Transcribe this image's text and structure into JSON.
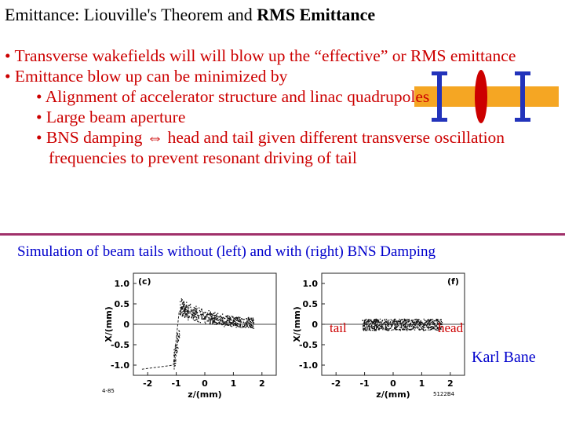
{
  "title": {
    "plain": "Emittance: Liouville's Theorem and ",
    "bold": "RMS Emittance"
  },
  "bullets": [
    "• Transverse wakefields will will blow up the “effective” or RMS emittance",
    "• Emittance blow up can be minimized by"
  ],
  "sub_bullets": [
    "• Alignment of accelerator structure and linac quadrupoles",
    "• Large beam aperture",
    "• BNS damping ⇔ head and tail given different transverse oscillation frequencies to prevent resonant driving of tail"
  ],
  "caption": "Simulation of beam tails without (left) and with (right) BNS Damping",
  "credit": "Karl Bane",
  "plot_labels": {
    "tail": "tail",
    "head": "head"
  },
  "colors": {
    "bullet_text": "#cc0000",
    "caption": "#0000cc",
    "rule": "#a0306a",
    "beam": "#f5a623",
    "magnet": "#2233bb",
    "bunch": "#cc0000"
  },
  "chart_data": [
    {
      "type": "scatter",
      "panel": "(c)",
      "xlabel": "z/(mm)",
      "ylabel": "X/(mm)",
      "xlim": [
        -2.5,
        2.5
      ],
      "ylim": [
        -1.25,
        1.25
      ],
      "xticks": [
        "-2",
        "-1",
        "0",
        "1",
        "2"
      ],
      "yticks": [
        "1.0",
        "0.5",
        "0",
        "-0.5",
        "-1.0"
      ],
      "footnote_left": "4-85"
    },
    {
      "type": "scatter",
      "panel": "(f)",
      "xlabel": "z/(mm)",
      "ylabel": "X/(mm)",
      "xlim": [
        -2.5,
        2.5
      ],
      "ylim": [
        -1.25,
        1.25
      ],
      "xticks": [
        "-2",
        "-1",
        "0",
        "1",
        "2"
      ],
      "yticks": [
        "1.0",
        "0.5",
        "0",
        "-0.5",
        "-1.0"
      ],
      "footnote_right": "5122B4"
    }
  ]
}
